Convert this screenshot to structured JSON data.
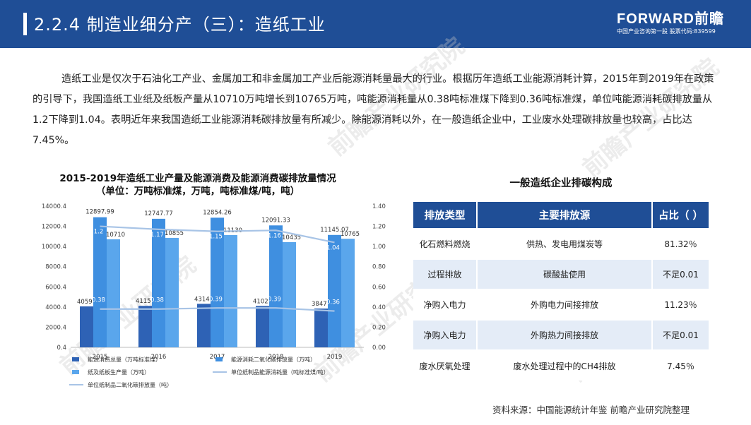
{
  "header": {
    "title": "2.2.4 制造业细分产（三）：造纸工业",
    "brand_name": "FORWARD前瞻",
    "brand_sub": "中国产业咨询第一股 股票代码:839599"
  },
  "watermark_text": "前瞻产业研究院",
  "intro": "造纸工业是仅次于石油化工产业、金属加工和非金属加工产业后能源消耗量最大的行业。根据历年造纸工业能源消耗计算，2015年到2019年在政策的引导下，我国造纸工业纸及纸板产量从10710万吨增长到10765万吨，吨能源消耗量从0.38吨标准煤下降到0.36吨标准煤，单位吨能源消耗碳排放量从1.2下降到1.04。表明近年来我国造纸工业能源消耗碳排放量有所减少。除能源消耗以外，在一般造纸企业中，工业废水处理碳排放量也较高，占比达7.45%。",
  "chart_data": {
    "type": "bar",
    "title": "2015-2019年造纸工业产量及能源消费及能源消费碳排放量情况",
    "subtitle": "（单位：万吨标准煤，万吨，吨标准煤/吨，吨）",
    "categories": [
      "2015",
      "2016",
      "2017",
      "2018",
      "2019"
    ],
    "left_axis": {
      "ticks": [
        "0.4",
        "2000.4",
        "4000.4",
        "6000.4",
        "8000.4",
        "10000.4",
        "12000.4",
        "14000.4"
      ],
      "range": [
        0.4,
        14000.4
      ]
    },
    "right_axis": {
      "ticks": [
        "0.00",
        "0.20",
        "0.40",
        "0.60",
        "0.80",
        "1.00",
        "1.20",
        "1.40"
      ],
      "range": [
        0,
        1.4
      ]
    },
    "series": [
      {
        "name": "能源消费总量（万吨标准煤）",
        "axis": "left",
        "kind": "bar",
        "color": "#2e62b5",
        "values": [
          4059,
          4115,
          4314,
          4102,
          3847
        ]
      },
      {
        "name": "能源消耗二氧化碳排放量（万吨）",
        "axis": "left",
        "kind": "bar",
        "color": "#3f8fe0",
        "values": [
          12897.99,
          12747.77,
          12854.26,
          12091.33,
          11145.07
        ]
      },
      {
        "name": "纸及纸板生产量（万吨）",
        "axis": "left",
        "kind": "bar",
        "color": "#5aa6ec",
        "values": [
          10710,
          10855,
          11130,
          10435,
          10765
        ]
      },
      {
        "name": "单位纸制品能源消耗量（吨标准煤/吨）",
        "axis": "right",
        "kind": "line",
        "color": "#a8c4e6",
        "values": [
          0.38,
          0.38,
          0.39,
          0.39,
          0.36
        ]
      },
      {
        "name": "单位纸制品二氧化碳排放量（吨）",
        "axis": "right",
        "kind": "line",
        "color": "#a8c4e6",
        "values": [
          1.2,
          1.17,
          1.15,
          1.16,
          1.04
        ]
      }
    ],
    "data_labels": {
      "energy": [
        "4059",
        "4115",
        "4314",
        "4102",
        "3847"
      ],
      "co2": [
        "12897.99",
        "12747.77",
        "12854.26",
        "12091.33",
        "11145.07"
      ],
      "paper": [
        "10710",
        "10855",
        "11130",
        "10435",
        "10765"
      ],
      "unit_energy": [
        "0.38",
        "0.38",
        "0.39",
        "0.39",
        "0.36"
      ],
      "unit_co2": [
        "1.2",
        "1.17",
        "1.15",
        "1.16",
        "1.04"
      ]
    },
    "legend_position": "bottom",
    "grid": false
  },
  "table": {
    "title": "一般造纸企业排碳构成",
    "headers": [
      "排放类型",
      "主要排放源",
      "占比（ ）"
    ],
    "rows": [
      [
        "化石燃料燃烧",
        "供热、发电用煤炭等",
        "81.32％"
      ],
      [
        "过程排放",
        "碳酸盐使用",
        "不足0.01"
      ],
      [
        "净购入电力",
        "外购电力间接排放",
        "11.23％"
      ],
      [
        "净购入电力",
        "外购热力间接排放",
        "不足0.01"
      ],
      [
        "废水厌氧处理",
        "废水处理过程中的CH4排放",
        "7.45％"
      ]
    ]
  },
  "source": "资料来源：中国能源统计年鉴 前瞻产业研究院整理"
}
